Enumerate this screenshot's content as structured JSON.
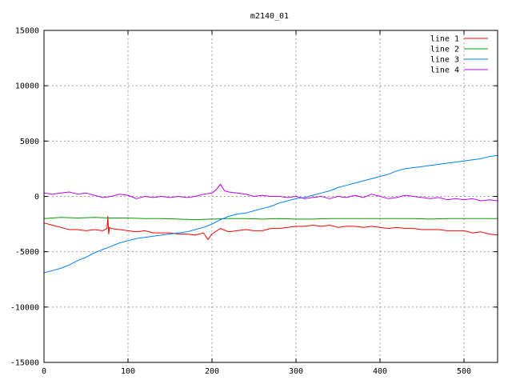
{
  "chart_data": {
    "type": "line",
    "title": "m2140_01",
    "xlabel": "",
    "ylabel": "",
    "xlim": [
      0,
      540
    ],
    "ylim": [
      -15000,
      15000
    ],
    "xticks": [
      0,
      100,
      200,
      300,
      400,
      500
    ],
    "yticks": [
      -15000,
      -10000,
      -5000,
      0,
      5000,
      10000,
      15000
    ],
    "grid": true,
    "legend_position": "top-right",
    "series": [
      {
        "name": "line 1",
        "color": "#ff0000",
        "points": [
          [
            0,
            -2400
          ],
          [
            10,
            -2600
          ],
          [
            20,
            -2800
          ],
          [
            30,
            -3000
          ],
          [
            40,
            -3000
          ],
          [
            50,
            -3100
          ],
          [
            60,
            -3000
          ],
          [
            70,
            -3100
          ],
          [
            75,
            -2900
          ],
          [
            76,
            -1800
          ],
          [
            77,
            -3400
          ],
          [
            78,
            -2800
          ],
          [
            80,
            -2900
          ],
          [
            90,
            -3000
          ],
          [
            100,
            -3100
          ],
          [
            110,
            -3200
          ],
          [
            120,
            -3100
          ],
          [
            130,
            -3300
          ],
          [
            140,
            -3300
          ],
          [
            150,
            -3300
          ],
          [
            160,
            -3400
          ],
          [
            170,
            -3400
          ],
          [
            180,
            -3500
          ],
          [
            190,
            -3300
          ],
          [
            195,
            -3900
          ],
          [
            200,
            -3400
          ],
          [
            210,
            -2900
          ],
          [
            220,
            -3200
          ],
          [
            230,
            -3100
          ],
          [
            240,
            -3000
          ],
          [
            250,
            -3100
          ],
          [
            260,
            -3100
          ],
          [
            270,
            -2900
          ],
          [
            280,
            -2900
          ],
          [
            290,
            -2800
          ],
          [
            300,
            -2700
          ],
          [
            310,
            -2700
          ],
          [
            320,
            -2600
          ],
          [
            330,
            -2700
          ],
          [
            340,
            -2600
          ],
          [
            350,
            -2800
          ],
          [
            360,
            -2700
          ],
          [
            370,
            -2700
          ],
          [
            380,
            -2800
          ],
          [
            390,
            -2700
          ],
          [
            400,
            -2800
          ],
          [
            410,
            -2900
          ],
          [
            420,
            -2800
          ],
          [
            430,
            -2900
          ],
          [
            440,
            -2900
          ],
          [
            450,
            -3000
          ],
          [
            460,
            -3000
          ],
          [
            470,
            -3000
          ],
          [
            480,
            -3100
          ],
          [
            490,
            -3100
          ],
          [
            500,
            -3100
          ],
          [
            510,
            -3300
          ],
          [
            520,
            -3200
          ],
          [
            530,
            -3400
          ],
          [
            540,
            -3500
          ]
        ]
      },
      {
        "name": "line 2",
        "color": "#00a000",
        "points": [
          [
            0,
            -2000
          ],
          [
            20,
            -1900
          ],
          [
            40,
            -1950
          ],
          [
            60,
            -1900
          ],
          [
            80,
            -1950
          ],
          [
            100,
            -1950
          ],
          [
            120,
            -2000
          ],
          [
            140,
            -2000
          ],
          [
            160,
            -2050
          ],
          [
            180,
            -2100
          ],
          [
            200,
            -2050
          ],
          [
            220,
            -2000
          ],
          [
            240,
            -2000
          ],
          [
            260,
            -2050
          ],
          [
            280,
            -2000
          ],
          [
            300,
            -2050
          ],
          [
            320,
            -2050
          ],
          [
            340,
            -2000
          ],
          [
            360,
            -2000
          ],
          [
            380,
            -2000
          ],
          [
            400,
            -2000
          ],
          [
            420,
            -2000
          ],
          [
            440,
            -2000
          ],
          [
            460,
            -2050
          ],
          [
            480,
            -2000
          ],
          [
            500,
            -2000
          ],
          [
            520,
            -2000
          ],
          [
            540,
            -2000
          ]
        ]
      },
      {
        "name": "line 3",
        "color": "#0080ff",
        "points": [
          [
            0,
            -6900
          ],
          [
            10,
            -6700
          ],
          [
            20,
            -6500
          ],
          [
            30,
            -6200
          ],
          [
            40,
            -5800
          ],
          [
            50,
            -5500
          ],
          [
            60,
            -5100
          ],
          [
            70,
            -4800
          ],
          [
            80,
            -4500
          ],
          [
            90,
            -4200
          ],
          [
            100,
            -4000
          ],
          [
            110,
            -3800
          ],
          [
            120,
            -3700
          ],
          [
            130,
            -3600
          ],
          [
            140,
            -3500
          ],
          [
            150,
            -3400
          ],
          [
            160,
            -3300
          ],
          [
            170,
            -3200
          ],
          [
            180,
            -3000
          ],
          [
            190,
            -2800
          ],
          [
            200,
            -2500
          ],
          [
            210,
            -2100
          ],
          [
            220,
            -1800
          ],
          [
            230,
            -1600
          ],
          [
            240,
            -1500
          ],
          [
            250,
            -1300
          ],
          [
            260,
            -1100
          ],
          [
            270,
            -900
          ],
          [
            280,
            -600
          ],
          [
            290,
            -400
          ],
          [
            300,
            -200
          ],
          [
            310,
            -100
          ],
          [
            320,
            100
          ],
          [
            330,
            300
          ],
          [
            340,
            500
          ],
          [
            350,
            800
          ],
          [
            360,
            1000
          ],
          [
            370,
            1200
          ],
          [
            380,
            1400
          ],
          [
            390,
            1600
          ],
          [
            400,
            1800
          ],
          [
            410,
            2000
          ],
          [
            420,
            2300
          ],
          [
            430,
            2500
          ],
          [
            440,
            2600
          ],
          [
            450,
            2700
          ],
          [
            460,
            2800
          ],
          [
            470,
            2900
          ],
          [
            480,
            3000
          ],
          [
            490,
            3100
          ],
          [
            500,
            3200
          ],
          [
            510,
            3300
          ],
          [
            520,
            3400
          ],
          [
            530,
            3600
          ],
          [
            540,
            3700
          ]
        ]
      },
      {
        "name": "line 4",
        "color": "#c000ff",
        "points": [
          [
            0,
            300
          ],
          [
            10,
            200
          ],
          [
            20,
            300
          ],
          [
            30,
            400
          ],
          [
            40,
            200
          ],
          [
            50,
            300
          ],
          [
            60,
            100
          ],
          [
            70,
            -100
          ],
          [
            80,
            0
          ],
          [
            90,
            200
          ],
          [
            100,
            100
          ],
          [
            110,
            -200
          ],
          [
            120,
            0
          ],
          [
            130,
            -100
          ],
          [
            140,
            0
          ],
          [
            150,
            -100
          ],
          [
            160,
            0
          ],
          [
            170,
            -100
          ],
          [
            180,
            0
          ],
          [
            190,
            200
          ],
          [
            200,
            300
          ],
          [
            205,
            600
          ],
          [
            210,
            1100
          ],
          [
            215,
            500
          ],
          [
            220,
            400
          ],
          [
            230,
            300
          ],
          [
            240,
            200
          ],
          [
            250,
            0
          ],
          [
            260,
            100
          ],
          [
            270,
            0
          ],
          [
            280,
            0
          ],
          [
            290,
            -100
          ],
          [
            300,
            0
          ],
          [
            310,
            -200
          ],
          [
            320,
            -100
          ],
          [
            330,
            0
          ],
          [
            340,
            -200
          ],
          [
            350,
            0
          ],
          [
            360,
            -100
          ],
          [
            370,
            100
          ],
          [
            380,
            -100
          ],
          [
            390,
            200
          ],
          [
            400,
            0
          ],
          [
            410,
            -200
          ],
          [
            420,
            -100
          ],
          [
            430,
            100
          ],
          [
            440,
            0
          ],
          [
            450,
            -100
          ],
          [
            460,
            -200
          ],
          [
            470,
            -100
          ],
          [
            480,
            -300
          ],
          [
            490,
            -200
          ],
          [
            500,
            -300
          ],
          [
            510,
            -200
          ],
          [
            520,
            -400
          ],
          [
            530,
            -300
          ],
          [
            540,
            -400
          ]
        ]
      }
    ]
  }
}
